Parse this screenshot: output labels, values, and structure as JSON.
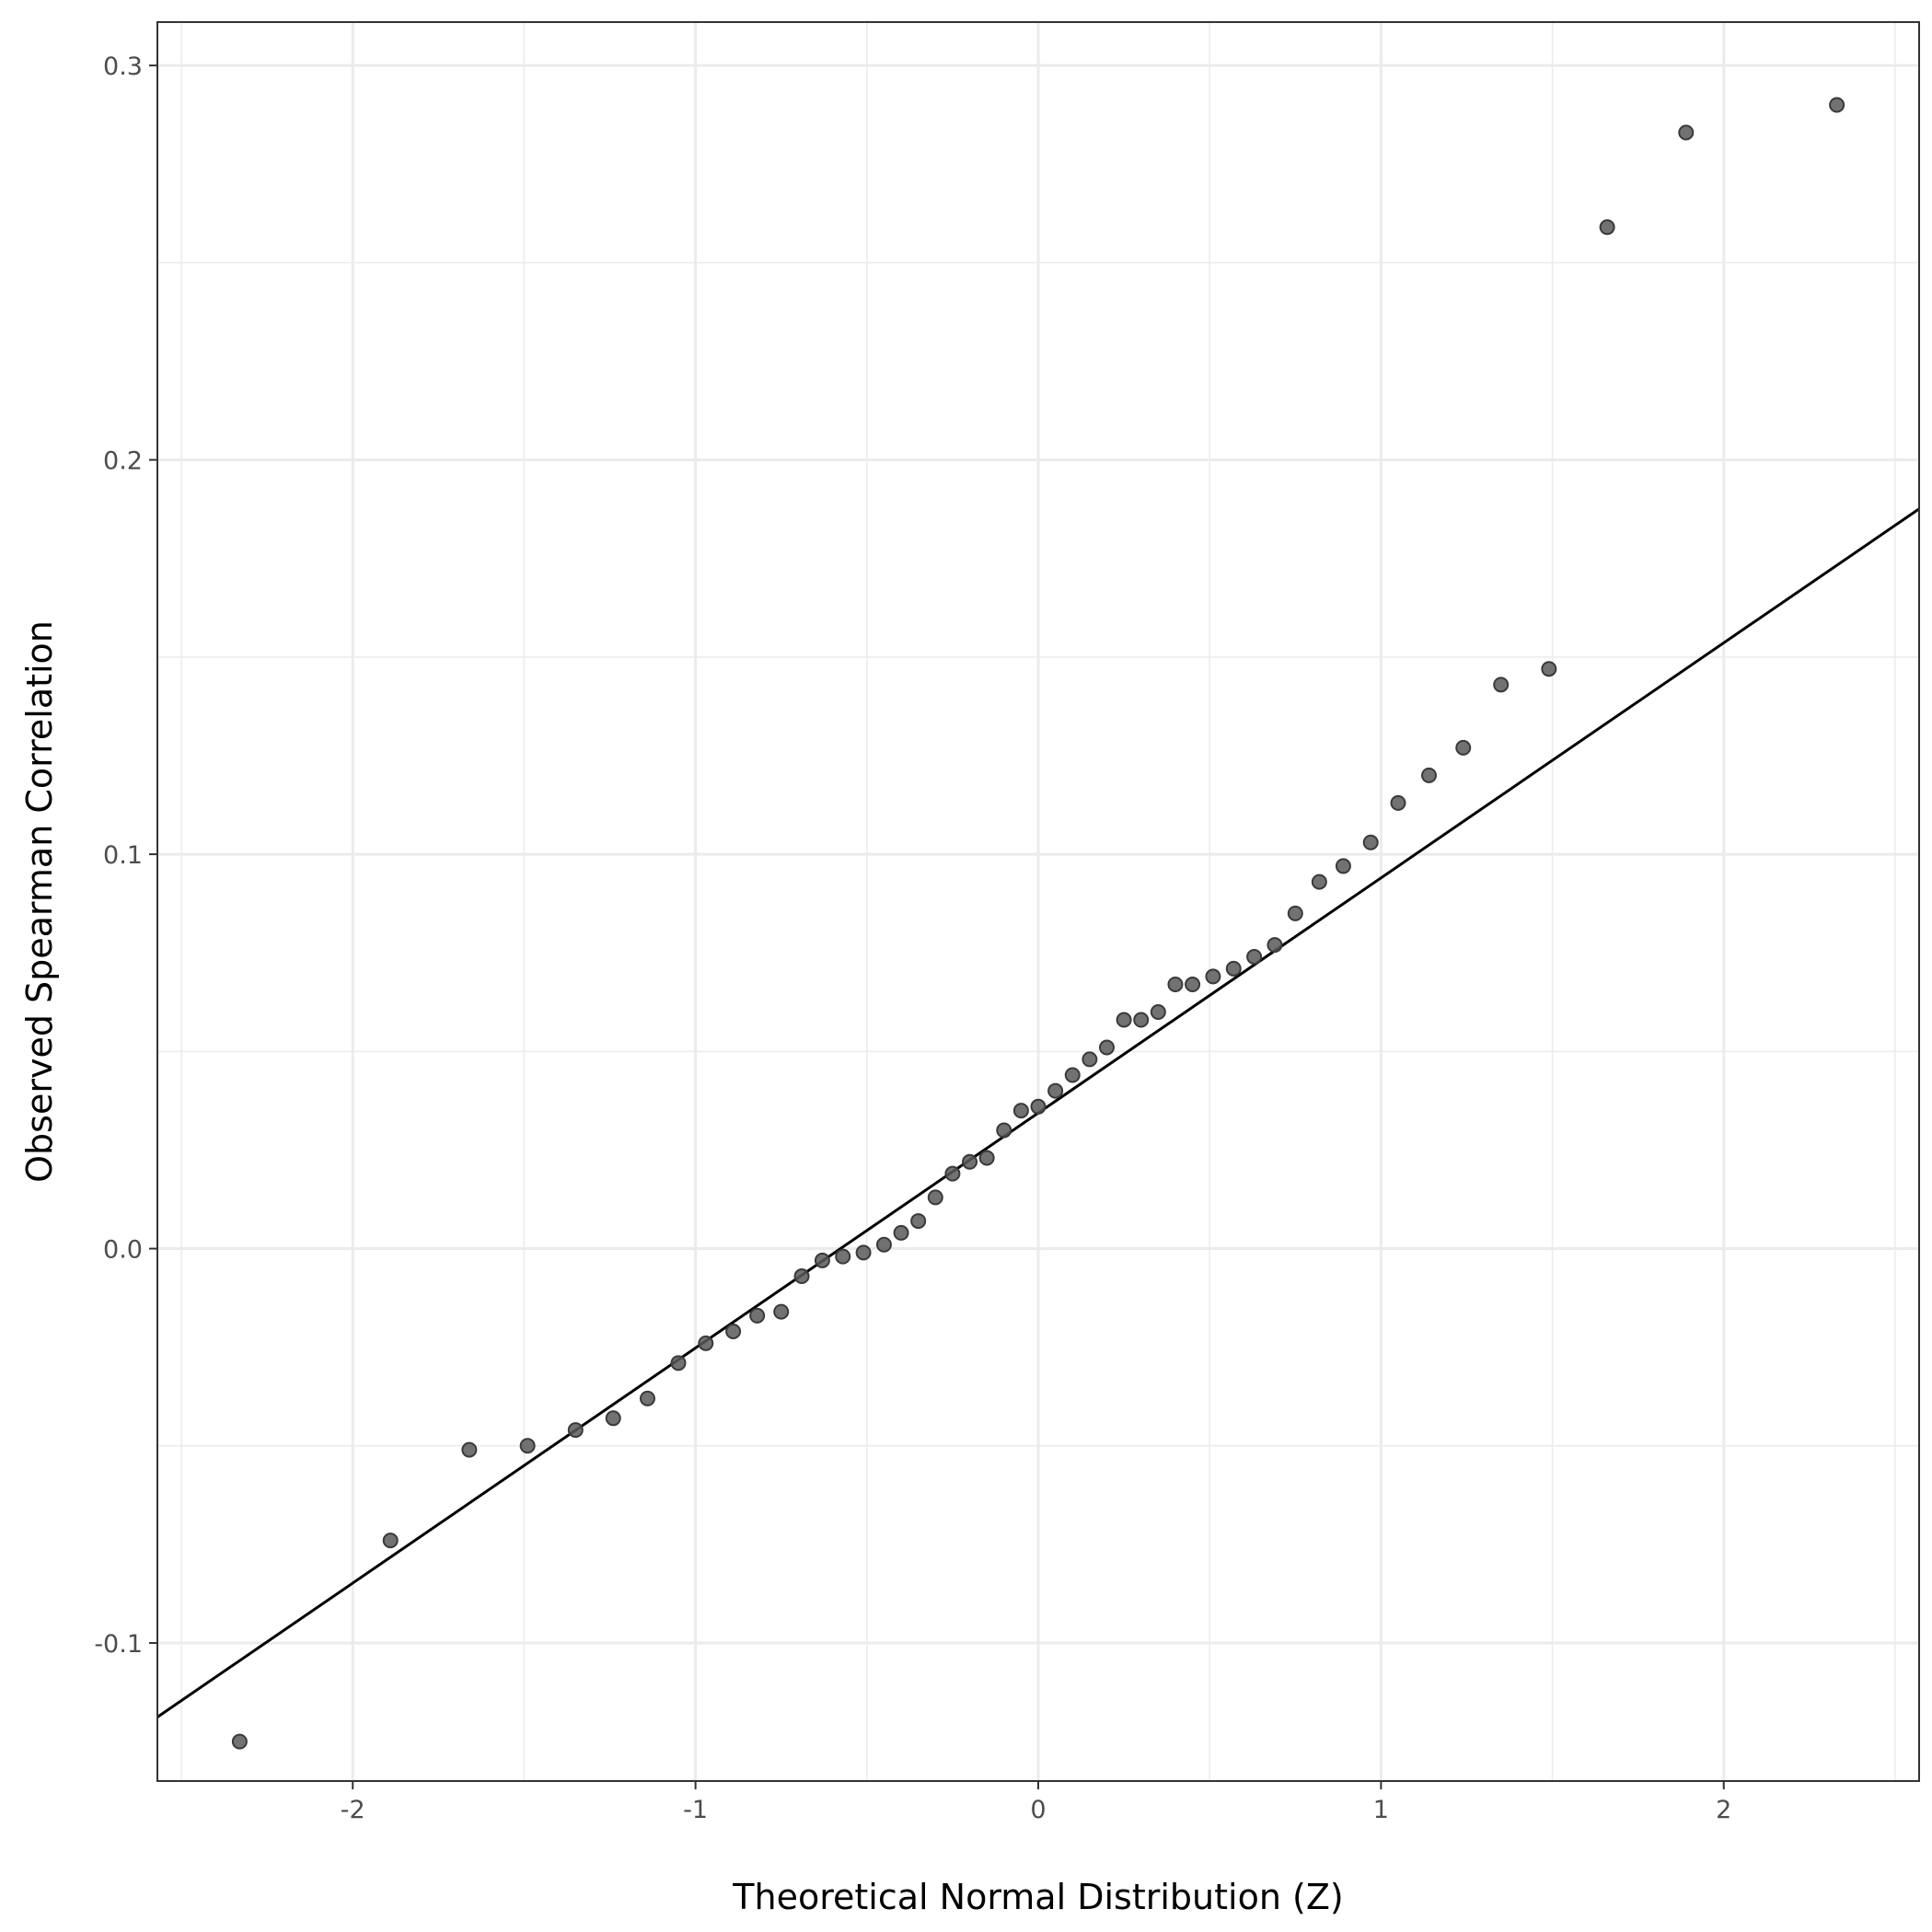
{
  "chart_data": {
    "type": "scatter",
    "xlabel": "Theoretical Normal Distribution (Z)",
    "ylabel": "Observed Spearman Correlation",
    "xlim": [
      -2.57,
      2.57
    ],
    "ylim": [
      -0.135,
      0.311
    ],
    "x_ticks": [
      -2,
      -1,
      0,
      1,
      2
    ],
    "x_tick_labels": [
      "-2",
      "-1",
      "0",
      "1",
      "2"
    ],
    "y_ticks": [
      -0.1,
      0.0,
      0.1,
      0.2,
      0.3
    ],
    "y_tick_labels": [
      "-0.1",
      "0.0",
      "0.1",
      "0.2",
      "0.3"
    ],
    "grid": true,
    "colors": {
      "points": "#595959",
      "line": "#000000",
      "grid": "#ebebeb",
      "frame": "#333333"
    },
    "reference_line": {
      "slope": 0.0596,
      "intercept": 0.0344
    },
    "points": [
      {
        "x": -2.33,
        "y": -0.125
      },
      {
        "x": -1.89,
        "y": -0.074
      },
      {
        "x": -1.66,
        "y": -0.051
      },
      {
        "x": -1.49,
        "y": -0.05
      },
      {
        "x": -1.35,
        "y": -0.046
      },
      {
        "x": -1.24,
        "y": -0.043
      },
      {
        "x": -1.14,
        "y": -0.038
      },
      {
        "x": -1.05,
        "y": -0.029
      },
      {
        "x": -0.97,
        "y": -0.024
      },
      {
        "x": -0.89,
        "y": -0.021
      },
      {
        "x": -0.82,
        "y": -0.017
      },
      {
        "x": -0.75,
        "y": -0.016
      },
      {
        "x": -0.69,
        "y": -0.007
      },
      {
        "x": -0.63,
        "y": -0.003
      },
      {
        "x": -0.57,
        "y": -0.002
      },
      {
        "x": -0.51,
        "y": -0.001
      },
      {
        "x": -0.45,
        "y": 0.001
      },
      {
        "x": -0.4,
        "y": 0.004
      },
      {
        "x": -0.35,
        "y": 0.007
      },
      {
        "x": -0.3,
        "y": 0.013
      },
      {
        "x": -0.25,
        "y": 0.019
      },
      {
        "x": -0.2,
        "y": 0.022
      },
      {
        "x": -0.15,
        "y": 0.023
      },
      {
        "x": -0.1,
        "y": 0.03
      },
      {
        "x": -0.05,
        "y": 0.035
      },
      {
        "x": 0.0,
        "y": 0.036
      },
      {
        "x": 0.05,
        "y": 0.04
      },
      {
        "x": 0.1,
        "y": 0.044
      },
      {
        "x": 0.15,
        "y": 0.048
      },
      {
        "x": 0.2,
        "y": 0.051
      },
      {
        "x": 0.25,
        "y": 0.058
      },
      {
        "x": 0.3,
        "y": 0.058
      },
      {
        "x": 0.35,
        "y": 0.06
      },
      {
        "x": 0.4,
        "y": 0.067
      },
      {
        "x": 0.45,
        "y": 0.067
      },
      {
        "x": 0.51,
        "y": 0.069
      },
      {
        "x": 0.57,
        "y": 0.071
      },
      {
        "x": 0.63,
        "y": 0.074
      },
      {
        "x": 0.69,
        "y": 0.077
      },
      {
        "x": 0.75,
        "y": 0.085
      },
      {
        "x": 0.82,
        "y": 0.093
      },
      {
        "x": 0.89,
        "y": 0.097
      },
      {
        "x": 0.97,
        "y": 0.103
      },
      {
        "x": 1.05,
        "y": 0.113
      },
      {
        "x": 1.14,
        "y": 0.12
      },
      {
        "x": 1.24,
        "y": 0.127
      },
      {
        "x": 1.35,
        "y": 0.143
      },
      {
        "x": 1.49,
        "y": 0.147
      },
      {
        "x": 1.66,
        "y": 0.259
      },
      {
        "x": 1.89,
        "y": 0.283
      },
      {
        "x": 2.33,
        "y": 0.29
      }
    ]
  }
}
